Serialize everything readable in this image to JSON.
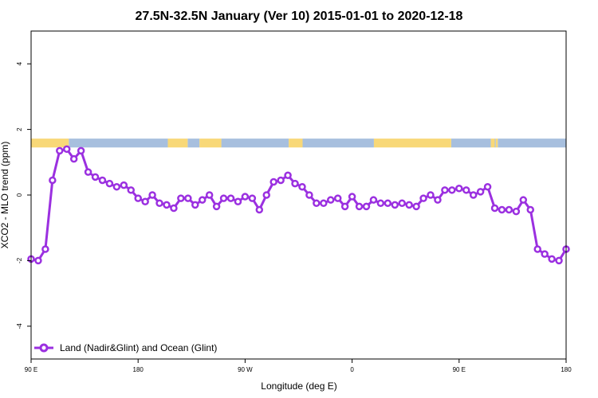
{
  "chart_data": {
    "type": "line",
    "title": "27.5N-32.5N January (Ver 10)   2015-01-01 to 2020-12-18",
    "xlabel": "Longitude (deg E)",
    "ylabel": "XCO2 - MLO trend (ppm)",
    "xlim": [
      -90,
      180
    ],
    "ylim": [
      -5,
      5
    ],
    "x_ticks": [
      {
        "value": -90,
        "label": "90 E"
      },
      {
        "value": -36,
        "label": "180"
      },
      {
        "value": 18,
        "label": "90 W"
      },
      {
        "value": 72,
        "label": "0"
      },
      {
        "value": 126,
        "label": "90 E"
      },
      {
        "value": 180,
        "label": "180"
      }
    ],
    "y_ticks": [
      -4,
      -2,
      0,
      2,
      4
    ],
    "legend": {
      "position": "bottom-left",
      "label": "Land (Nadir&Glint) and Ocean (Glint)"
    },
    "series": [
      {
        "name": "Land (Nadir&Glint) and Ocean (Glint)",
        "color": "#9b30e0",
        "x": [
          -90,
          -86.4,
          -82.8,
          -79.2,
          -75.6,
          -72,
          -68.4,
          -64.8,
          -61.2,
          -57.6,
          -54,
          -50.4,
          -46.8,
          -43.2,
          -39.6,
          -36,
          -32.4,
          -28.8,
          -25.2,
          -21.6,
          -18,
          -14.4,
          -10.8,
          -7.2,
          -3.6,
          0,
          3.6,
          7.2,
          10.8,
          14.4,
          18,
          21.6,
          25.2,
          28.8,
          32.4,
          36,
          39.6,
          43.2,
          46.8,
          50.4,
          54,
          57.6,
          61.2,
          64.8,
          68.4,
          72,
          75.6,
          79.2,
          82.8,
          86.4,
          90,
          93.6,
          97.2,
          100.8,
          104.4,
          108,
          111.6,
          115.2,
          118.8,
          122.4,
          126,
          129.6,
          133.2,
          136.8,
          140.4,
          144,
          147.6,
          151.2,
          154.8,
          158.4,
          162,
          165.6,
          169.2,
          172.8,
          176.4,
          180
        ],
        "y": [
          -1.95,
          -2.0,
          -1.65,
          0.45,
          1.35,
          1.4,
          1.1,
          1.35,
          0.7,
          0.55,
          0.45,
          0.35,
          0.25,
          0.3,
          0.15,
          -0.1,
          -0.2,
          0.0,
          -0.25,
          -0.3,
          -0.4,
          -0.1,
          -0.1,
          -0.3,
          -0.15,
          0.0,
          -0.35,
          -0.1,
          -0.1,
          -0.2,
          -0.05,
          -0.1,
          -0.45,
          0.0,
          0.4,
          0.45,
          0.6,
          0.35,
          0.25,
          0.0,
          -0.25,
          -0.25,
          -0.15,
          -0.1,
          -0.35,
          -0.05,
          -0.35,
          -0.35,
          -0.15,
          -0.25,
          -0.25,
          -0.3,
          -0.25,
          -0.3,
          -0.35,
          -0.1,
          0.0,
          -0.15,
          0.15,
          0.15,
          0.2,
          0.15,
          0.0,
          0.1,
          0.25,
          -0.4,
          -0.45,
          -0.45,
          -0.5,
          -0.15,
          -0.45,
          -1.65,
          -1.8,
          -1.95,
          -2.0,
          -1.65
        ]
      }
    ],
    "surface_band": {
      "y_range": [
        1.45,
        1.72
      ],
      "land_color": "#f8d878",
      "ocean_color": "#a7bfde",
      "land_segments": [
        [
          -90,
          -71
        ],
        [
          -21,
          -11
        ],
        [
          -5,
          6
        ],
        [
          40,
          47
        ],
        [
          83,
          122
        ],
        [
          142,
          144
        ],
        [
          144.5,
          145.5
        ]
      ],
      "ocean_segments": [
        [
          -71,
          -21
        ],
        [
          -11,
          -5
        ],
        [
          6,
          40
        ],
        [
          47,
          83
        ],
        [
          122,
          142
        ],
        [
          144,
          144.5
        ],
        [
          145.5,
          180
        ]
      ]
    },
    "grid": false
  }
}
